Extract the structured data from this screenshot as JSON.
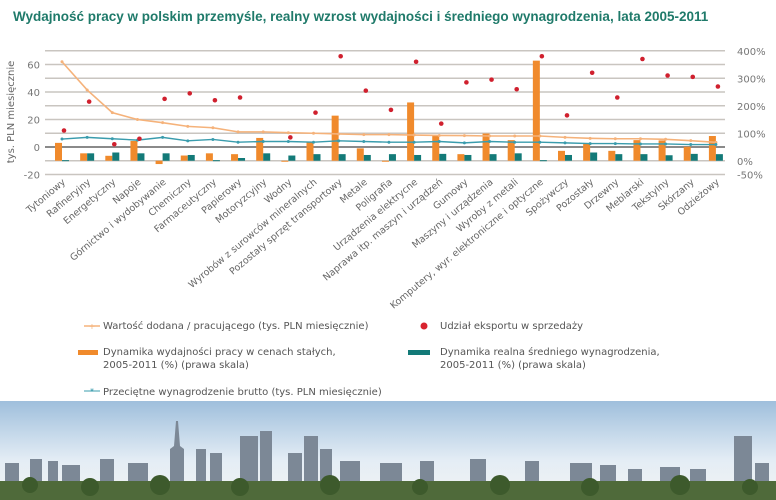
{
  "title": "Wydajność pracy w polskim przemyśle,  realny wzrost wydajności i średniego wynagrodzenia, lata 2005-2011",
  "chart_data": {
    "type": "bar+line",
    "ylabel": "tys. PLN miesięcznie",
    "ylim_left": [
      -20,
      70
    ],
    "yticks_left": [
      "60",
      "40",
      "20",
      "0",
      "-20"
    ],
    "yticks_left_values": [
      60,
      40,
      20,
      0,
      -20
    ],
    "ylim_right": [
      -50,
      400
    ],
    "yticks_right": [
      "400%",
      "300%",
      "200%",
      "100%",
      "0%",
      "-50%"
    ],
    "yticks_right_values": [
      400,
      300,
      200,
      100,
      0,
      -50
    ],
    "grid": true,
    "categories": [
      "Tytoniowy",
      "Rafineryjny",
      "Energetyczny",
      "Napoje",
      "Górnictwo i wydobywanie",
      "Chemiczny",
      "Farmaceutyczny",
      "Papierowy",
      "Motoryzcyjny",
      "Wodny",
      "Wyrobów z surowców mineralnych",
      "Pozostały sprzęt transportowy",
      "Metale",
      "Poligrafia",
      "Urządzenia elektrycne",
      "Naprawa itp. maszyn i urządzeń",
      "Gumowy",
      "Maszyny i urządzenia",
      "Wyroby z metali",
      "Komputery, wyr. elektroniczne i optyczne",
      "Spożywczy",
      "Pozostały",
      "Drzewny",
      "Meblarski",
      "Tekstylny",
      "Skórzany",
      "Odzieżowy"
    ],
    "series": [
      {
        "name": "Wartość dodana / pracującego (tys. PLN miesięcznie)",
        "type": "line",
        "axis": "left",
        "color": "#f5b27a",
        "values": [
          62,
          41.5,
          25,
          20,
          17.7,
          15,
          14,
          11,
          11,
          10.4,
          10,
          9.5,
          9,
          9,
          8.7,
          8.4,
          8.3,
          8,
          8,
          8,
          7,
          6.3,
          6,
          6,
          5.6,
          4.6,
          3.4
        ]
      },
      {
        "name": "Udział eksportu w sprzedaży",
        "type": "scatter",
        "axis": "left",
        "color": "#d0202e",
        "values": [
          12,
          33,
          2,
          6,
          35,
          39,
          34,
          36,
          null,
          7,
          25,
          66,
          41,
          27,
          62,
          17,
          47,
          49,
          42,
          66,
          23,
          54,
          36,
          64,
          52,
          51,
          44
        ]
      },
      {
        "name": "Dynamika wydajności pracy w cenach stałych,\n2005-2011 (%) (prawa skala)",
        "type": "bar",
        "axis": "right",
        "color": "#f08a2c",
        "values": [
          65,
          27,
          18,
          72,
          -12,
          19,
          27,
          24,
          83,
          -2,
          69,
          164,
          45,
          0,
          212,
          93,
          24,
          99,
          75,
          364,
          36,
          61,
          36,
          75,
          74,
          51,
          90
        ]
      },
      {
        "name": "Dynamika realna średniego wynagrodzenia,\n2005-2011 (%) (prawa skala)",
        "type": "bar",
        "axis": "right",
        "color": "#137a78",
        "values": [
          2,
          27,
          30,
          27,
          27,
          21,
          2,
          10,
          27,
          19,
          24,
          24,
          21,
          24,
          21,
          25,
          21,
          24,
          27,
          2,
          21,
          30,
          24,
          24,
          20,
          25,
          24
        ]
      },
      {
        "name": "Przeciętne wynagrodzenie brutto (tys. PLN miesięcznie)",
        "type": "line",
        "axis": "left",
        "color": "#3a9cad",
        "values": [
          5.8,
          7,
          6,
          5,
          7,
          4.5,
          5.5,
          3.5,
          4,
          4,
          3.5,
          4.5,
          4,
          3.5,
          3.5,
          4,
          3,
          4,
          3.5,
          3.5,
          3,
          2.5,
          2.5,
          2.2,
          2.2,
          1.8,
          1.8
        ]
      }
    ],
    "legend_placement": "bottom"
  },
  "legend": {
    "value_added": "Wartość dodana / pracującego (tys. PLN miesięcznie)",
    "export_share": "Udział eksportu w sprzedaży",
    "productivity_l1": "Dynamika wydajności pracy w cenach stałych,",
    "productivity_l2": "2005-2011 (%) (prawa skala)",
    "wage_dyn_l1": "Dynamika realna średniego wynagrodzenia,",
    "wage_dyn_l2": "2005-2011 (%) (prawa skala)",
    "avg_wage": "Przeciętne wynagrodzenie brutto (tys. PLN miesięcznie)"
  }
}
